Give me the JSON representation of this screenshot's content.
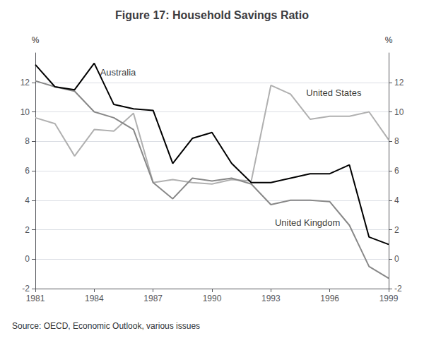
{
  "chart_data": {
    "type": "line",
    "title": "Figure 17: Household Savings Ratio",
    "ylabel": "%",
    "y2label": "%",
    "x": [
      1981,
      1982,
      1983,
      1984,
      1985,
      1986,
      1987,
      1988,
      1989,
      1990,
      1991,
      1992,
      1993,
      1994,
      1995,
      1996,
      1997,
      1998,
      1999
    ],
    "series": [
      {
        "name": "United States",
        "color": "#b0b0b0",
        "values": [
          9.6,
          9.2,
          7.0,
          8.8,
          8.7,
          9.9,
          5.2,
          5.4,
          5.2,
          5.1,
          5.4,
          5.3,
          11.8,
          11.2,
          9.5,
          9.7,
          9.7,
          10.0,
          8.1
        ]
      },
      {
        "name": "United Kingdom",
        "color": "#888888",
        "values": [
          12.1,
          11.7,
          11.4,
          10.0,
          9.6,
          8.8,
          5.2,
          4.1,
          5.5,
          5.3,
          5.5,
          5.1,
          3.7,
          4.0,
          4.0,
          3.9,
          2.3,
          -0.5,
          -1.3
        ]
      },
      {
        "name": "Australia",
        "color": "#000000",
        "values": [
          13.2,
          11.7,
          11.5,
          13.3,
          10.5,
          10.2,
          10.1,
          6.5,
          8.2,
          8.6,
          6.5,
          5.2,
          5.2,
          5.5,
          5.8,
          5.8,
          6.4,
          1.5,
          1.0
        ]
      }
    ],
    "annotations": [
      {
        "text": "Australia",
        "x": 1984.3,
        "y": 12.7
      },
      {
        "text": "United States",
        "x": 1994.8,
        "y": 11.3
      },
      {
        "text": "United Kingdom",
        "x": 1993.2,
        "y": 2.5
      }
    ],
    "note": "Source: OECD, Economic Outlook, various issues",
    "xlim": [
      1981,
      1999
    ],
    "xticks": [
      1981,
      1984,
      1987,
      1990,
      1993,
      1996,
      1999
    ],
    "ylim": [
      -2,
      14
    ],
    "yticks": [
      -2,
      0,
      2,
      4,
      6,
      8,
      10,
      12
    ],
    "y2lim": [
      -2,
      14
    ],
    "y2ticks": [
      -2,
      0,
      2,
      4,
      6,
      8,
      10,
      12
    ],
    "grid": true
  }
}
